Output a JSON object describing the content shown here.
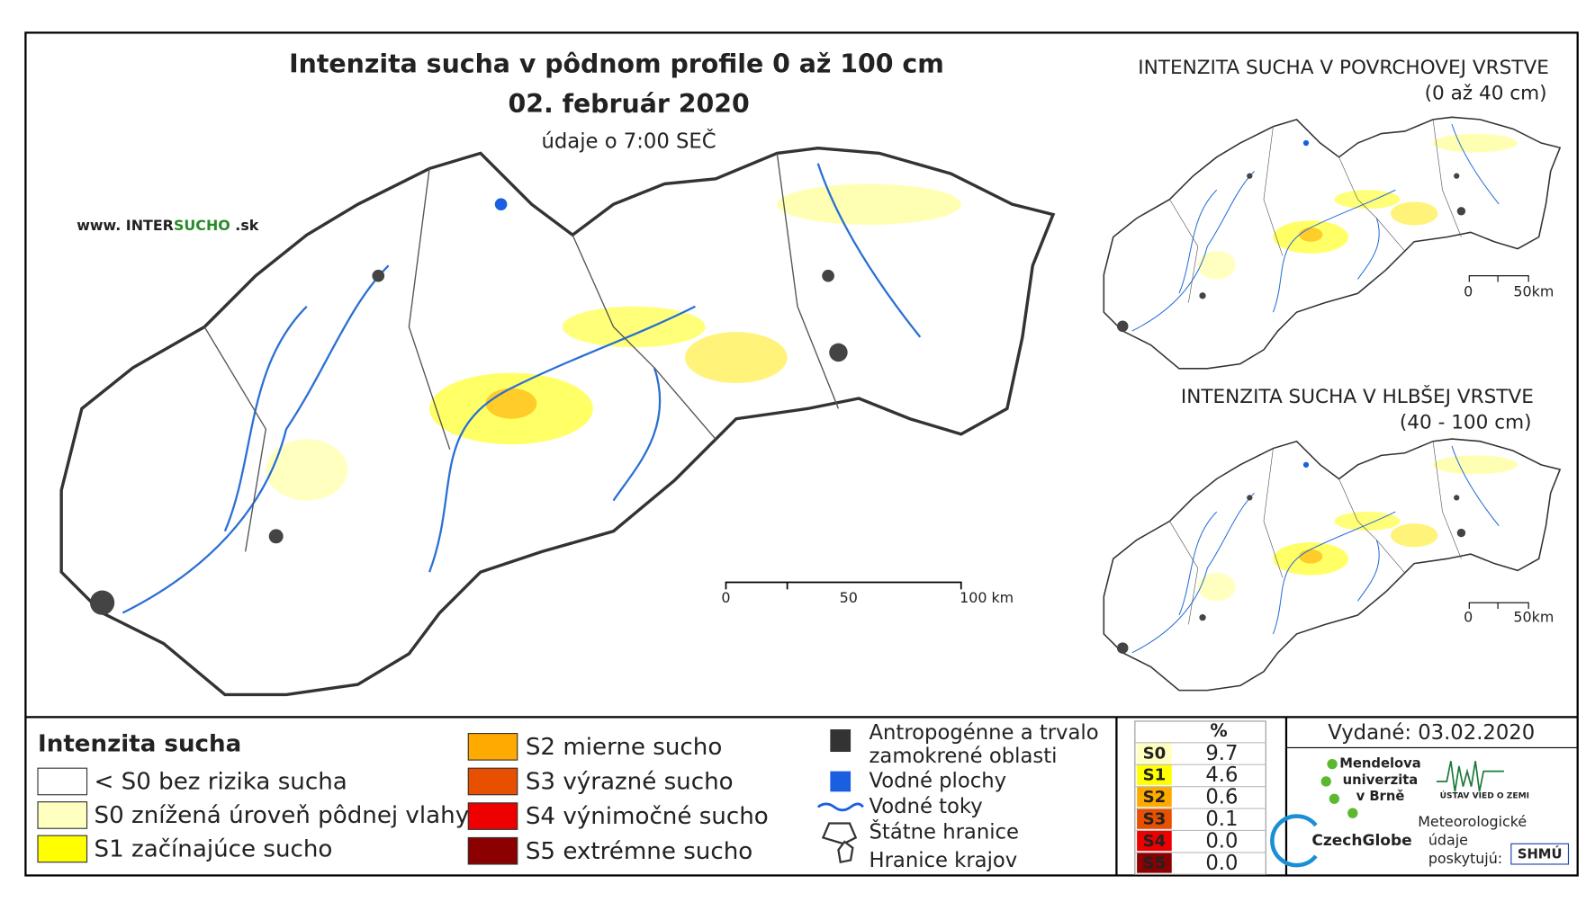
{
  "title": "Intenzita sucha v pôdnom profile 0 až 100 cm",
  "date": "02. február 2020",
  "time_note": "údaje o 7:00 SEČ",
  "website": {
    "prefix": "www. INTER",
    "highlight": "SUCHO",
    "suffix": " .sk"
  },
  "main_scale": [
    "0",
    "50",
    "100 km"
  ],
  "inset_top": {
    "title": "INTENZITA SUCHA V POVRCHOVEJ VRSTVE",
    "subtitle": "(0 až 40 cm)",
    "scale": [
      "0",
      "50km"
    ]
  },
  "inset_bottom": {
    "title": "INTENZITA SUCHA V HLBŠEJ VRSTVE",
    "subtitle": "(40 - 100 cm)",
    "scale": [
      "0",
      "50km"
    ]
  },
  "legend": {
    "title": "Intenzita sucha",
    "items": [
      {
        "label": "< S0 bez rizika sucha",
        "color": "#ffffff"
      },
      {
        "label": "S0 znížená úroveň pôdnej vlahy",
        "color": "#ffffc0"
      },
      {
        "label": "S1 začínajúce sucho",
        "color": "#ffff00"
      },
      {
        "label": "S2 mierne sucho",
        "color": "#ffaa00"
      },
      {
        "label": "S3 výrazné sucho",
        "color": "#e65000"
      },
      {
        "label": "S4 výnimočné sucho",
        "color": "#ee0000"
      },
      {
        "label": "S5 extrémne sucho",
        "color": "#8b0000"
      }
    ]
  },
  "legend_other": {
    "anthropogenic": "Antropogénne a trvalo",
    "anthropogenic2": "zamokrené oblasti",
    "water_bodies": "Vodné plochy",
    "rivers": "Vodné toky",
    "borders": "Štátne hranice",
    "regions": "Hranice krajov"
  },
  "stats": {
    "header": "%",
    "rows": [
      {
        "class": "S0",
        "value": "9.7",
        "color": "#ffffc0"
      },
      {
        "class": "S1",
        "value": "4.6",
        "color": "#ffff00"
      },
      {
        "class": "S2",
        "value": "0.6",
        "color": "#ffaa00"
      },
      {
        "class": "S3",
        "value": "0.1",
        "color": "#e65000"
      },
      {
        "class": "S4",
        "value": "0.0",
        "color": "#ee0000"
      },
      {
        "class": "S5",
        "value": "0.0",
        "color": "#8b0000"
      }
    ]
  },
  "issued": "Vydané: 03.02.2020",
  "partners": {
    "mendel": [
      "Mendelova",
      "univerzita",
      "v Brně"
    ],
    "czechglobe": "CzechGlobe",
    "uvz": "ÚSTAV VIED O ZEMI",
    "meteo": [
      "Meteorologické",
      "údaje",
      "poskytujú:"
    ],
    "shmu": "SHMÚ"
  }
}
